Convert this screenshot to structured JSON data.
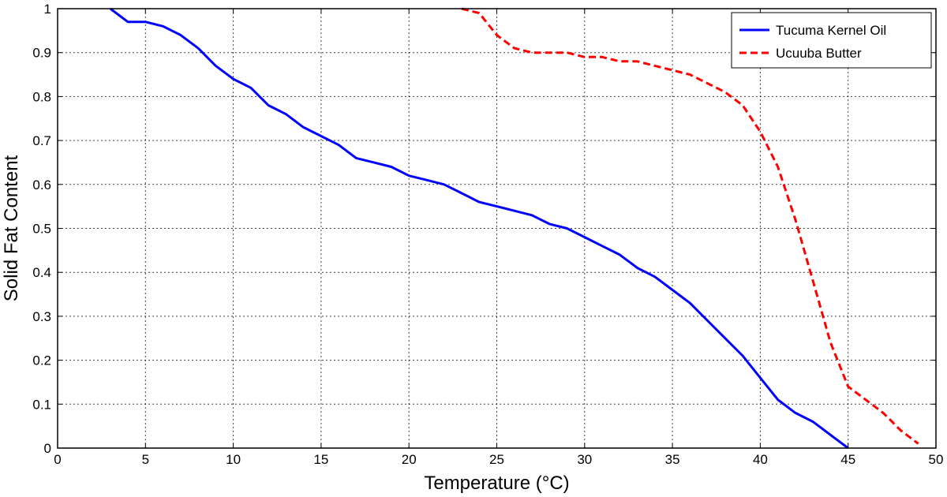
{
  "chart_data": {
    "type": "line",
    "xlabel": "Temperature (°C)",
    "ylabel": "Solid Fat Content",
    "xlim": [
      0,
      50
    ],
    "ylim": [
      0,
      1
    ],
    "xticks": [
      0,
      5,
      10,
      15,
      20,
      25,
      30,
      35,
      40,
      45,
      50
    ],
    "yticks": [
      0,
      0.1,
      0.2,
      0.3,
      0.4,
      0.5,
      0.6,
      0.7,
      0.8,
      0.9,
      1
    ],
    "grid": true,
    "legend_position": "top-right",
    "series": [
      {
        "name": "Tucuma Kernel Oil",
        "color": "#0000ff",
        "style": "solid",
        "x": [
          3,
          4,
          5,
          6,
          7,
          8,
          9,
          10,
          11,
          12,
          13,
          14,
          15,
          16,
          17,
          18,
          19,
          20,
          21,
          22,
          23,
          24,
          25,
          26,
          27,
          28,
          29,
          30,
          31,
          32,
          33,
          34,
          35,
          36,
          37,
          38,
          39,
          40,
          41,
          42,
          43,
          44,
          45
        ],
        "y": [
          1.0,
          0.97,
          0.97,
          0.96,
          0.94,
          0.91,
          0.87,
          0.84,
          0.82,
          0.78,
          0.76,
          0.73,
          0.71,
          0.69,
          0.66,
          0.65,
          0.64,
          0.62,
          0.61,
          0.6,
          0.58,
          0.56,
          0.55,
          0.54,
          0.53,
          0.51,
          0.5,
          0.48,
          0.46,
          0.44,
          0.41,
          0.39,
          0.36,
          0.33,
          0.29,
          0.25,
          0.21,
          0.16,
          0.11,
          0.08,
          0.06,
          0.03,
          0.0
        ]
      },
      {
        "name": "Ucuuba Butter",
        "color": "#ff0000",
        "style": "dashed",
        "x": [
          23,
          24,
          25,
          26,
          27,
          28,
          29,
          30,
          31,
          32,
          33,
          34,
          35,
          36,
          37,
          38,
          39,
          40,
          41,
          42,
          43,
          44,
          45,
          46,
          47,
          48,
          49
        ],
        "y": [
          1.0,
          0.99,
          0.94,
          0.91,
          0.9,
          0.9,
          0.9,
          0.89,
          0.89,
          0.88,
          0.88,
          0.87,
          0.86,
          0.85,
          0.83,
          0.81,
          0.78,
          0.72,
          0.64,
          0.52,
          0.38,
          0.24,
          0.14,
          0.11,
          0.08,
          0.04,
          0.01
        ]
      }
    ]
  }
}
